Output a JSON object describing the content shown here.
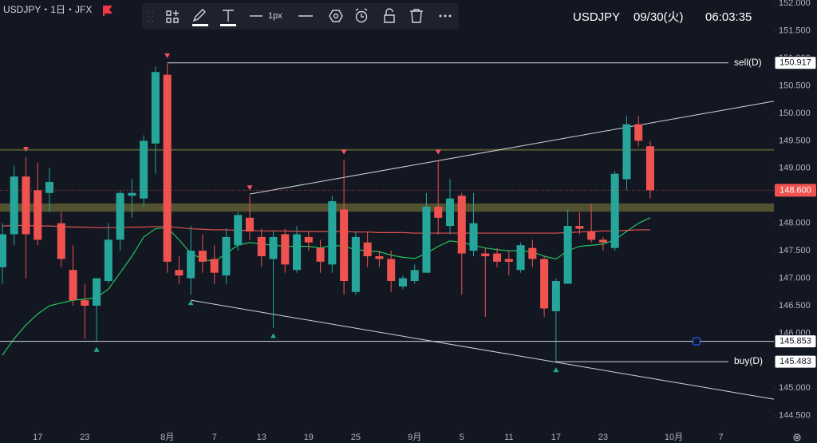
{
  "chart_data": {
    "type": "candlestick",
    "title": "USDJPY・1日・JFX",
    "header": {
      "symbol": "USDJPY",
      "date": "09/30(火)",
      "time": "06:03:35"
    },
    "toolbar": {
      "width": "1px"
    },
    "up_color": "#26a69a",
    "down_color": "#ef5350",
    "open": [
      147.2,
      147.8,
      148.85,
      148.6,
      148.55,
      148.0,
      147.15,
      146.6,
      146.5,
      146.95,
      147.7,
      148.5,
      148.45,
      149.45,
      150.7,
      147.15,
      147.0,
      147.5,
      147.35,
      147.05,
      147.6,
      148.1,
      147.75,
      147.35,
      147.8,
      147.15,
      147.75,
      147.55,
      147.25,
      148.25,
      146.75,
      147.65,
      147.4,
      147.35,
      146.85,
      146.95,
      147.1,
      148.3,
      147.95,
      148.5,
      147.5,
      147.45,
      147.45,
      147.35,
      147.15,
      147.55,
      147.35,
      146.4,
      146.9,
      147.95,
      147.85,
      147.7,
      147.55,
      148.8,
      149.8,
      149.4
    ],
    "high": [
      148.0,
      149.05,
      149.2,
      149.1,
      149.0,
      148.2,
      147.6,
      146.9,
      147.0,
      148.0,
      148.6,
      148.8,
      149.6,
      150.85,
      150.9,
      147.4,
      147.95,
      147.8,
      147.6,
      147.9,
      148.2,
      148.5,
      147.9,
      147.85,
      147.9,
      147.95,
      147.85,
      147.7,
      148.5,
      149.15,
      147.85,
      147.85,
      147.5,
      147.5,
      147.05,
      147.25,
      148.55,
      149.15,
      148.8,
      148.55,
      148.55,
      147.55,
      147.55,
      147.5,
      147.65,
      147.7,
      147.4,
      147.0,
      148.25,
      148.2,
      148.35,
      147.75,
      148.95,
      149.95,
      149.95,
      149.5
    ],
    "low": [
      146.9,
      147.6,
      147.0,
      147.6,
      148.2,
      147.2,
      146.5,
      145.9,
      145.85,
      146.9,
      147.5,
      148.1,
      148.3,
      148.9,
      147.1,
      146.9,
      146.7,
      147.1,
      146.9,
      146.9,
      147.5,
      147.7,
      147.2,
      146.1,
      147.1,
      147.1,
      147.5,
      147.1,
      147.1,
      146.7,
      146.7,
      147.2,
      147.2,
      146.75,
      146.8,
      146.9,
      147.1,
      147.8,
      147.8,
      146.7,
      147.4,
      146.3,
      147.2,
      147.05,
      147.1,
      147.2,
      146.3,
      145.48,
      146.9,
      147.8,
      147.65,
      147.5,
      147.5,
      148.6,
      149.4,
      148.45
    ],
    "close": [
      147.8,
      148.85,
      147.8,
      147.7,
      148.75,
      147.35,
      146.6,
      146.5,
      147.0,
      147.7,
      148.55,
      148.55,
      149.5,
      150.75,
      147.3,
      147.05,
      147.5,
      147.3,
      147.1,
      147.75,
      148.15,
      147.85,
      147.4,
      147.75,
      147.25,
      147.8,
      147.65,
      147.3,
      148.4,
      146.95,
      147.75,
      147.4,
      147.35,
      146.95,
      147.0,
      147.15,
      148.3,
      148.1,
      148.45,
      147.45,
      148.0,
      147.4,
      147.3,
      147.3,
      147.6,
      147.35,
      146.45,
      146.95,
      147.95,
      147.9,
      147.7,
      147.65,
      148.9,
      149.8,
      149.5,
      148.6
    ],
    "moving_averages": [
      {
        "color": "#22c55e",
        "values": [
          145.6,
          145.9,
          146.15,
          146.35,
          146.5,
          146.55,
          146.6,
          146.62,
          146.65,
          146.8,
          147.1,
          147.4,
          147.75,
          147.9,
          147.92,
          147.7,
          147.45,
          147.35,
          147.3,
          147.45,
          147.6,
          147.65,
          147.62,
          147.6,
          147.58,
          147.58,
          147.58,
          147.55,
          147.6,
          147.58,
          147.52,
          147.5,
          147.48,
          147.42,
          147.38,
          147.36,
          147.45,
          147.58,
          147.68,
          147.65,
          147.6,
          147.55,
          147.52,
          147.5,
          147.5,
          147.48,
          147.4,
          147.35,
          147.5,
          147.58,
          147.6,
          147.62,
          147.7,
          147.85,
          148.0,
          148.1
        ]
      },
      {
        "color": "#e0524f",
        "values": [
          147.95,
          147.96,
          147.96,
          147.95,
          147.95,
          147.94,
          147.93,
          147.93,
          147.92,
          147.92,
          147.92,
          147.93,
          147.93,
          147.94,
          147.94,
          147.92,
          147.9,
          147.89,
          147.88,
          147.88,
          147.87,
          147.87,
          147.86,
          147.86,
          147.86,
          147.85,
          147.85,
          147.85,
          147.85,
          147.85,
          147.84,
          147.84,
          147.83,
          147.83,
          147.83,
          147.82,
          147.82,
          147.82,
          147.82,
          147.82,
          147.82,
          147.82,
          147.82,
          147.82,
          147.82,
          147.82,
          147.82,
          147.82,
          147.83,
          147.84,
          147.85,
          147.86,
          147.86,
          147.87,
          147.88,
          147.88
        ]
      }
    ],
    "markers_high": [
      2,
      14,
      21,
      29,
      37
    ],
    "markers_low": [
      8,
      16,
      23,
      47
    ],
    "levels": [
      {
        "name": "sell(D)",
        "value": 150.917,
        "from": 14,
        "style": "tag"
      },
      {
        "value": 148.6,
        "label": "148.600",
        "style": "price"
      },
      {
        "value": 145.853,
        "style": "alert"
      },
      {
        "name": "buy(D)",
        "value": 145.483,
        "from": 47,
        "style": "tag"
      }
    ],
    "zones": [
      {
        "low": 149.32,
        "high": 149.35
      },
      {
        "low": 148.21,
        "high": 148.36
      }
    ],
    "trendlines": [
      {
        "x": [
          21,
          65.5
        ],
        "y": [
          148.53,
          150.22
        ]
      },
      {
        "x": [
          16,
          65.5
        ],
        "y": [
          146.6,
          144.8
        ]
      }
    ],
    "xlim": [
      -0.2,
      65.5
    ],
    "ylim": [
      144.25,
      152.06
    ],
    "yticks": [
      {
        "value": 152,
        "label": "152.000"
      },
      {
        "value": 151.5,
        "label": "151.500"
      },
      {
        "value": 151,
        "label": "151.000"
      },
      {
        "value": 150.5,
        "label": "150.500"
      },
      {
        "value": 150,
        "label": "150.000"
      },
      {
        "value": 149.5,
        "label": "149.500"
      },
      {
        "value": 149,
        "label": "149.000"
      },
      {
        "value": 148,
        "label": "148.000"
      },
      {
        "value": 147.5,
        "label": "147.500"
      },
      {
        "value": 147,
        "label": "147.000"
      },
      {
        "value": 146.5,
        "label": "146.500"
      },
      {
        "value": 146,
        "label": "146.000"
      },
      {
        "value": 145,
        "label": "145.000"
      },
      {
        "value": 144.5,
        "label": "144.500"
      }
    ],
    "xticks": [
      {
        "value": 3,
        "label": "17"
      },
      {
        "value": 7,
        "label": "23"
      },
      {
        "value": 14,
        "label": "8月"
      },
      {
        "value": 18,
        "label": "7"
      },
      {
        "value": 22,
        "label": "13"
      },
      {
        "value": 26,
        "label": "19"
      },
      {
        "value": 30,
        "label": "25"
      },
      {
        "value": 35,
        "label": "9月"
      },
      {
        "value": 39,
        "label": "5"
      },
      {
        "value": 43,
        "label": "11"
      },
      {
        "value": 47,
        "label": "17"
      },
      {
        "value": 51,
        "label": "23"
      },
      {
        "value": 57,
        "label": "10月"
      },
      {
        "value": 61,
        "label": "7"
      }
    ]
  }
}
